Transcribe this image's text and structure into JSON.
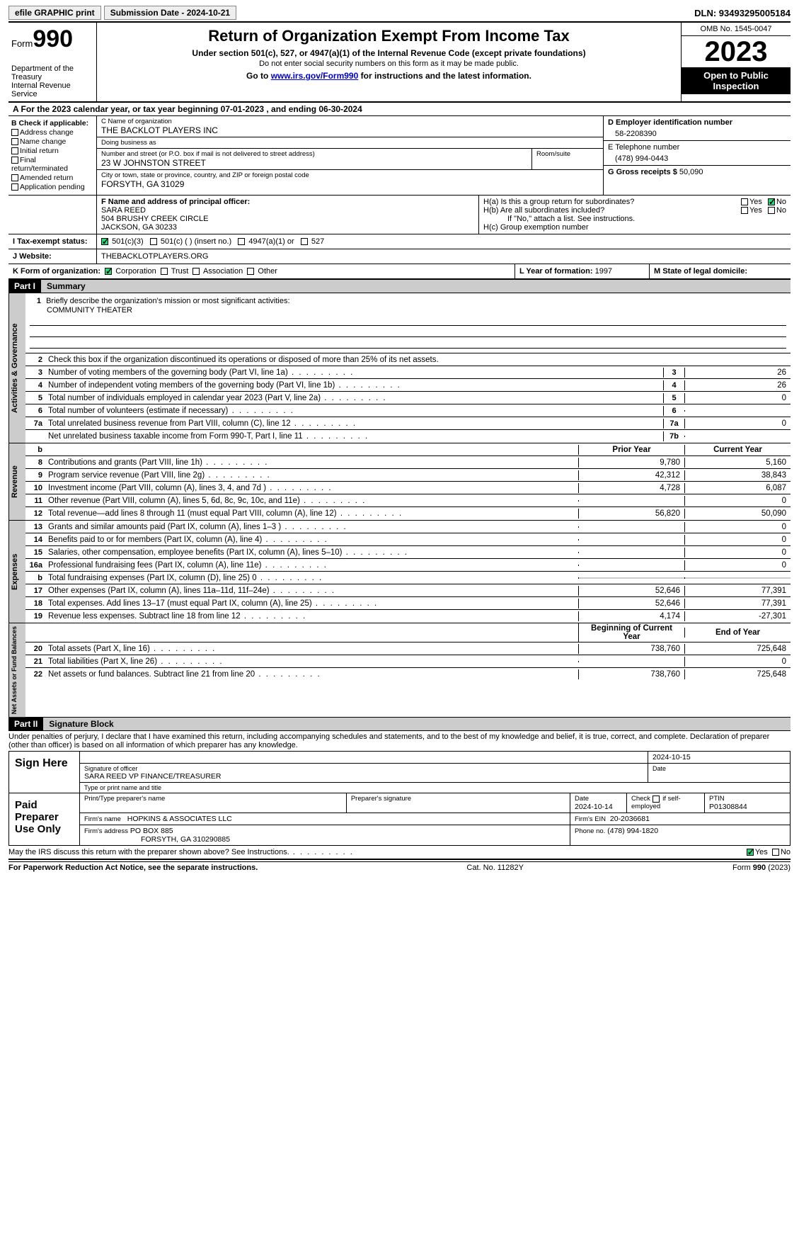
{
  "topbar": {
    "efile": "efile GRAPHIC print",
    "submission": "Submission Date - 2024-10-21",
    "dln": "DLN: 93493295005184"
  },
  "header": {
    "form_prefix": "Form",
    "form_num": "990",
    "title": "Return of Organization Exempt From Income Tax",
    "sub": "Under section 501(c), 527, or 4947(a)(1) of the Internal Revenue Code (except private foundations)",
    "sub2": "Do not enter social security numbers on this form as it may be made public.",
    "goto_pre": "Go to ",
    "goto_link": "www.irs.gov/Form990",
    "goto_post": " for instructions and the latest information.",
    "dept": "Department of the Treasury\nInternal Revenue Service",
    "omb": "OMB No. 1545-0047",
    "year": "2023",
    "open": "Open to Public Inspection"
  },
  "rowA": "A For the 2023 calendar year, or tax year beginning 07-01-2023   , and ending 06-30-2024",
  "boxB": {
    "title": "B Check if applicable:",
    "items": [
      "Address change",
      "Name change",
      "Initial return",
      "Final return/terminated",
      "Amended return",
      "Application pending"
    ]
  },
  "boxC": {
    "name_lbl": "C Name of organization",
    "name": "THE BACKLOT PLAYERS INC",
    "dba_lbl": "Doing business as",
    "dba": "",
    "addr_lbl": "Number and street (or P.O. box if mail is not delivered to street address)",
    "addr": "23 W JOHNSTON STREET",
    "room_lbl": "Room/suite",
    "city_lbl": "City or town, state or province, country, and ZIP or foreign postal code",
    "city": "FORSYTH, GA  31029"
  },
  "boxD": {
    "lbl": "D Employer identification number",
    "val": "58-2208390"
  },
  "boxE": {
    "lbl": "E Telephone number",
    "val": "(478) 994-0443"
  },
  "boxG": {
    "lbl": "G Gross receipts $",
    "val": "50,090"
  },
  "boxF": {
    "lbl": "F  Name and address of principal officer:",
    "name": "SARA REED",
    "addr1": "504 BRUSHY CREEK CIRCLE",
    "addr2": "JACKSON, GA  30233"
  },
  "boxH": {
    "a": "H(a)  Is this a group return for subordinates?",
    "b": "H(b)  Are all subordinates included?",
    "note": "If \"No,\" attach a list. See instructions.",
    "c": "H(c)  Group exemption number"
  },
  "rowI": {
    "lbl": "I   Tax-exempt status:",
    "opts": [
      "501(c)(3)",
      "501(c) (  ) (insert no.)",
      "4947(a)(1) or",
      "527"
    ]
  },
  "rowJ": {
    "lbl": "J   Website:",
    "val": "THEBACKLOTPLAYERS.ORG"
  },
  "rowK": {
    "lbl": "K Form of organization:",
    "opts": [
      "Corporation",
      "Trust",
      "Association",
      "Other"
    ]
  },
  "rowL": {
    "lbl": "L Year of formation:",
    "val": "1997"
  },
  "rowM": {
    "lbl": "M State of legal domicile:",
    "val": ""
  },
  "part1": {
    "hdr": "Part I",
    "title": "Summary"
  },
  "summary": {
    "q1": "Briefly describe the organization's mission or most significant activities:",
    "mission": "COMMUNITY THEATER",
    "q2": "Check this box      if the organization discontinued its operations or disposed of more than 25% of its net assets."
  },
  "gov_lines": [
    {
      "n": "3",
      "t": "Number of voting members of the governing body (Part VI, line 1a)",
      "box": "3",
      "v": "26"
    },
    {
      "n": "4",
      "t": "Number of independent voting members of the governing body (Part VI, line 1b)",
      "box": "4",
      "v": "26"
    },
    {
      "n": "5",
      "t": "Total number of individuals employed in calendar year 2023 (Part V, line 2a)",
      "box": "5",
      "v": "0"
    },
    {
      "n": "6",
      "t": "Total number of volunteers (estimate if necessary)",
      "box": "6",
      "v": ""
    },
    {
      "n": "7a",
      "t": "Total unrelated business revenue from Part VIII, column (C), line 12",
      "box": "7a",
      "v": "0"
    },
    {
      "n": "",
      "t": "Net unrelated business taxable income from Form 990-T, Part I, line 11",
      "box": "7b",
      "v": ""
    }
  ],
  "col_hdrs": {
    "prior": "Prior Year",
    "current": "Current Year",
    "begin": "Beginning of Current Year",
    "end": "End of Year"
  },
  "revenue": [
    {
      "n": "8",
      "t": "Contributions and grants (Part VIII, line 1h)",
      "p": "9,780",
      "c": "5,160"
    },
    {
      "n": "9",
      "t": "Program service revenue (Part VIII, line 2g)",
      "p": "42,312",
      "c": "38,843"
    },
    {
      "n": "10",
      "t": "Investment income (Part VIII, column (A), lines 3, 4, and 7d )",
      "p": "4,728",
      "c": "6,087"
    },
    {
      "n": "11",
      "t": "Other revenue (Part VIII, column (A), lines 5, 6d, 8c, 9c, 10c, and 11e)",
      "p": "",
      "c": "0"
    },
    {
      "n": "12",
      "t": "Total revenue—add lines 8 through 11 (must equal Part VIII, column (A), line 12)",
      "p": "56,820",
      "c": "50,090"
    }
  ],
  "expenses": [
    {
      "n": "13",
      "t": "Grants and similar amounts paid (Part IX, column (A), lines 1–3 )",
      "p": "",
      "c": "0"
    },
    {
      "n": "14",
      "t": "Benefits paid to or for members (Part IX, column (A), line 4)",
      "p": "",
      "c": "0"
    },
    {
      "n": "15",
      "t": "Salaries, other compensation, employee benefits (Part IX, column (A), lines 5–10)",
      "p": "",
      "c": "0"
    },
    {
      "n": "16a",
      "t": "Professional fundraising fees (Part IX, column (A), line 11e)",
      "p": "",
      "c": "0"
    },
    {
      "n": "b",
      "t": "Total fundraising expenses (Part IX, column (D), line 25) 0",
      "p": "shade",
      "c": "shade"
    },
    {
      "n": "17",
      "t": "Other expenses (Part IX, column (A), lines 11a–11d, 11f–24e)",
      "p": "52,646",
      "c": "77,391"
    },
    {
      "n": "18",
      "t": "Total expenses. Add lines 13–17 (must equal Part IX, column (A), line 25)",
      "p": "52,646",
      "c": "77,391"
    },
    {
      "n": "19",
      "t": "Revenue less expenses. Subtract line 18 from line 12",
      "p": "4,174",
      "c": "-27,301"
    }
  ],
  "netassets": [
    {
      "n": "20",
      "t": "Total assets (Part X, line 16)",
      "p": "738,760",
      "c": "725,648"
    },
    {
      "n": "21",
      "t": "Total liabilities (Part X, line 26)",
      "p": "",
      "c": "0"
    },
    {
      "n": "22",
      "t": "Net assets or fund balances. Subtract line 21 from line 20",
      "p": "738,760",
      "c": "725,648"
    }
  ],
  "part2": {
    "hdr": "Part II",
    "title": "Signature Block"
  },
  "penalties": "Under penalties of perjury, I declare that I have examined this return, including accompanying schedules and statements, and to the best of my knowledge and belief, it is true, correct, and complete. Declaration of preparer (other than officer) is based on all information of which preparer has any knowledge.",
  "sign": {
    "here": "Sign Here",
    "sig_lbl": "Signature of officer",
    "date_lbl": "Date",
    "date": "2024-10-15",
    "officer": "SARA REED  VP FINANCE/TREASURER",
    "type_lbl": "Type or print name and title"
  },
  "paid": {
    "lbl": "Paid Preparer Use Only",
    "h1": "Print/Type preparer's name",
    "h2": "Preparer's signature",
    "h3": "Date",
    "h3v": "2024-10-14",
    "h4": "Check      if self-employed",
    "h5": "PTIN",
    "h5v": "P01308844",
    "firm_lbl": "Firm's name",
    "firm": "HOPKINS & ASSOCIATES LLC",
    "ein_lbl": "Firm's EIN",
    "ein": "20-2036681",
    "addr_lbl": "Firm's address",
    "addr": "PO BOX 885",
    "addr2": "FORSYTH, GA  310290885",
    "phone_lbl": "Phone no.",
    "phone": "(478) 994-1820"
  },
  "discuss": "May the IRS discuss this return with the preparer shown above? See Instructions.",
  "footer": {
    "left": "For Paperwork Reduction Act Notice, see the separate instructions.",
    "mid": "Cat. No. 11282Y",
    "right_pre": "Form ",
    "right_b": "990",
    "right_post": " (2023)"
  },
  "yesno": {
    "yes": "Yes",
    "no": "No"
  }
}
